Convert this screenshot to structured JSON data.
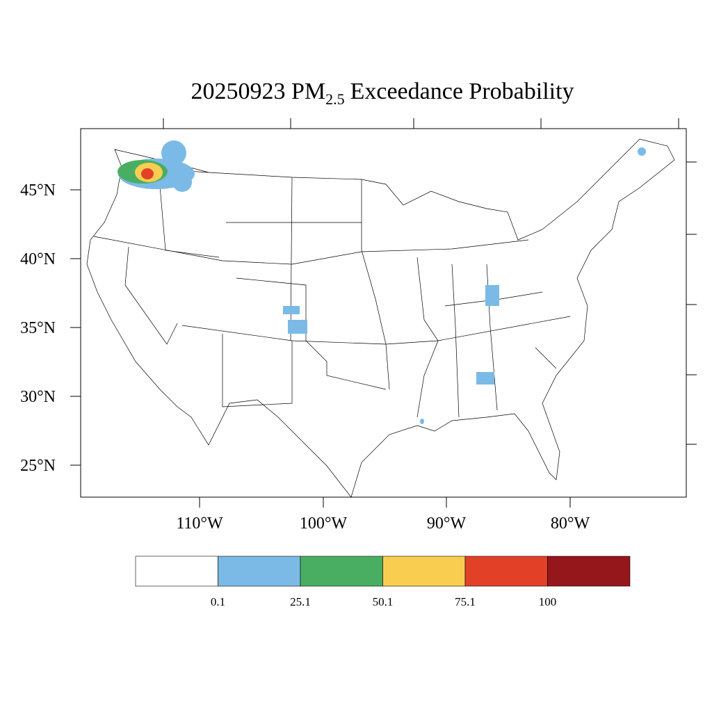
{
  "title": {
    "main": "20250923 PM",
    "sub": "2.5",
    "rest": "Exceedance Probability"
  },
  "lat_labels": [
    "45°N",
    "40°N",
    "35°N",
    "30°N",
    "25°N"
  ],
  "lon_labels": [
    "110°W",
    "100°W",
    "90°W",
    "80°W"
  ],
  "legend": {
    "colors": [
      "#ffffff",
      "#7bbae6",
      "#4aae62",
      "#f9ce50",
      "#e24128",
      "#95171c"
    ],
    "labels": [
      "0.1",
      "25.1",
      "50.1",
      "75.1",
      "100"
    ]
  }
}
